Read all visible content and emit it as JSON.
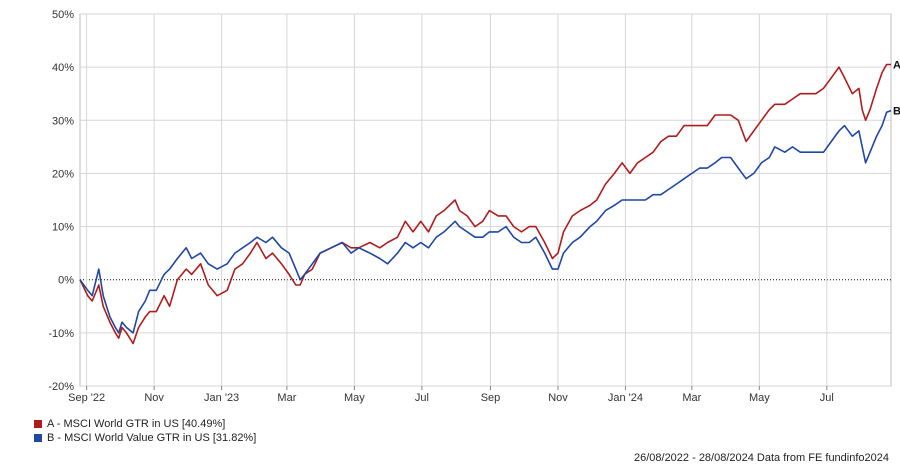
{
  "chart_data": {
    "type": "line",
    "xlim": [
      "2022-08-26",
      "2024-08-28"
    ],
    "ylim": [
      -20,
      50
    ],
    "ytick_values": [
      -20,
      -10,
      0,
      10,
      20,
      30,
      40,
      50
    ],
    "ytick_labels": [
      "-20%",
      "-10%",
      "0%",
      "10%",
      "20%",
      "30%",
      "40%",
      "50%"
    ],
    "xtick_dates": [
      "2022-09-01",
      "2022-11-01",
      "2023-01-01",
      "2023-03-01",
      "2023-05-01",
      "2023-07-01",
      "2023-09-01",
      "2023-11-01",
      "2024-01-01",
      "2024-03-01",
      "2024-05-01",
      "2024-07-01"
    ],
    "xtick_labels": [
      "Sep '22",
      "Nov",
      "Jan '23",
      "Mar",
      "May",
      "Jul",
      "Sep",
      "Nov",
      "Jan '24",
      "Mar",
      "May",
      "Jul"
    ],
    "grid": true,
    "zero_line": "dotted",
    "legend_position": "bottom-left",
    "series": [
      {
        "id": "A",
        "name": "A - MSCI World GTR in US [40.49%]",
        "end_label": "A",
        "color": "#b01c1c",
        "points": [
          [
            "2022-08-26",
            0
          ],
          [
            "2022-09-02",
            -3
          ],
          [
            "2022-09-06",
            -4
          ],
          [
            "2022-09-12",
            -1
          ],
          [
            "2022-09-16",
            -5
          ],
          [
            "2022-09-22",
            -8
          ],
          [
            "2022-09-27",
            -10
          ],
          [
            "2022-09-30",
            -11
          ],
          [
            "2022-10-03",
            -9
          ],
          [
            "2022-10-07",
            -10
          ],
          [
            "2022-10-13",
            -12
          ],
          [
            "2022-10-18",
            -9
          ],
          [
            "2022-10-24",
            -7
          ],
          [
            "2022-10-28",
            -6
          ],
          [
            "2022-11-03",
            -6
          ],
          [
            "2022-11-10",
            -3
          ],
          [
            "2022-11-15",
            -5
          ],
          [
            "2022-11-22",
            0
          ],
          [
            "2022-11-30",
            2
          ],
          [
            "2022-12-05",
            1
          ],
          [
            "2022-12-13",
            3
          ],
          [
            "2022-12-20",
            -1
          ],
          [
            "2022-12-28",
            -3
          ],
          [
            "2023-01-06",
            -2
          ],
          [
            "2023-01-13",
            2
          ],
          [
            "2023-01-20",
            3
          ],
          [
            "2023-01-27",
            5
          ],
          [
            "2023-02-02",
            7
          ],
          [
            "2023-02-10",
            4
          ],
          [
            "2023-02-16",
            5
          ],
          [
            "2023-02-24",
            3
          ],
          [
            "2023-03-03",
            1
          ],
          [
            "2023-03-09",
            -1
          ],
          [
            "2023-03-13",
            -1
          ],
          [
            "2023-03-17",
            1
          ],
          [
            "2023-03-24",
            2
          ],
          [
            "2023-03-31",
            5
          ],
          [
            "2023-04-10",
            6
          ],
          [
            "2023-04-20",
            7
          ],
          [
            "2023-04-28",
            6
          ],
          [
            "2023-05-05",
            6
          ],
          [
            "2023-05-15",
            7
          ],
          [
            "2023-05-24",
            6
          ],
          [
            "2023-05-31",
            7
          ],
          [
            "2023-06-09",
            8
          ],
          [
            "2023-06-16",
            11
          ],
          [
            "2023-06-23",
            9
          ],
          [
            "2023-06-30",
            11
          ],
          [
            "2023-07-07",
            9
          ],
          [
            "2023-07-14",
            12
          ],
          [
            "2023-07-21",
            13
          ],
          [
            "2023-07-31",
            15
          ],
          [
            "2023-08-04",
            13
          ],
          [
            "2023-08-11",
            12
          ],
          [
            "2023-08-18",
            10
          ],
          [
            "2023-08-25",
            11
          ],
          [
            "2023-08-31",
            13
          ],
          [
            "2023-09-08",
            12
          ],
          [
            "2023-09-15",
            12
          ],
          [
            "2023-09-22",
            10
          ],
          [
            "2023-09-29",
            9
          ],
          [
            "2023-10-06",
            10
          ],
          [
            "2023-10-12",
            10
          ],
          [
            "2023-10-20",
            7
          ],
          [
            "2023-10-27",
            4
          ],
          [
            "2023-11-01",
            5
          ],
          [
            "2023-11-06",
            9
          ],
          [
            "2023-11-14",
            12
          ],
          [
            "2023-11-21",
            13
          ],
          [
            "2023-11-30",
            14
          ],
          [
            "2023-12-06",
            15
          ],
          [
            "2023-12-14",
            18
          ],
          [
            "2023-12-22",
            20
          ],
          [
            "2023-12-29",
            22
          ],
          [
            "2024-01-05",
            20
          ],
          [
            "2024-01-12",
            22
          ],
          [
            "2024-01-19",
            23
          ],
          [
            "2024-01-26",
            24
          ],
          [
            "2024-02-02",
            26
          ],
          [
            "2024-02-09",
            27
          ],
          [
            "2024-02-16",
            27
          ],
          [
            "2024-02-23",
            29
          ],
          [
            "2024-03-01",
            29
          ],
          [
            "2024-03-08",
            29
          ],
          [
            "2024-03-15",
            29
          ],
          [
            "2024-03-22",
            31
          ],
          [
            "2024-03-28",
            31
          ],
          [
            "2024-04-05",
            31
          ],
          [
            "2024-04-12",
            30
          ],
          [
            "2024-04-19",
            26
          ],
          [
            "2024-04-26",
            28
          ],
          [
            "2024-05-03",
            30
          ],
          [
            "2024-05-10",
            32
          ],
          [
            "2024-05-15",
            33
          ],
          [
            "2024-05-24",
            33
          ],
          [
            "2024-05-31",
            34
          ],
          [
            "2024-06-07",
            35
          ],
          [
            "2024-06-14",
            35
          ],
          [
            "2024-06-21",
            35
          ],
          [
            "2024-06-28",
            36
          ],
          [
            "2024-07-05",
            38
          ],
          [
            "2024-07-12",
            40
          ],
          [
            "2024-07-17",
            38
          ],
          [
            "2024-07-24",
            35
          ],
          [
            "2024-07-30",
            36
          ],
          [
            "2024-08-02",
            32
          ],
          [
            "2024-08-05",
            30
          ],
          [
            "2024-08-09",
            32
          ],
          [
            "2024-08-15",
            36
          ],
          [
            "2024-08-20",
            39
          ],
          [
            "2024-08-24",
            40.5
          ],
          [
            "2024-08-28",
            40.49
          ]
        ]
      },
      {
        "id": "B",
        "name": "B - MSCI World Value GTR in US [31.82%]",
        "end_label": "B",
        "color": "#1f47a5",
        "points": [
          [
            "2022-08-26",
            0
          ],
          [
            "2022-09-02",
            -2
          ],
          [
            "2022-09-06",
            -3
          ],
          [
            "2022-09-12",
            2
          ],
          [
            "2022-09-16",
            -3
          ],
          [
            "2022-09-22",
            -7
          ],
          [
            "2022-09-27",
            -9
          ],
          [
            "2022-09-30",
            -10
          ],
          [
            "2022-10-03",
            -8
          ],
          [
            "2022-10-07",
            -9
          ],
          [
            "2022-10-13",
            -10
          ],
          [
            "2022-10-18",
            -6
          ],
          [
            "2022-10-24",
            -4
          ],
          [
            "2022-10-28",
            -2
          ],
          [
            "2022-11-03",
            -2
          ],
          [
            "2022-11-10",
            1
          ],
          [
            "2022-11-15",
            2
          ],
          [
            "2022-11-22",
            4
          ],
          [
            "2022-11-30",
            6
          ],
          [
            "2022-12-05",
            4
          ],
          [
            "2022-12-13",
            5
          ],
          [
            "2022-12-20",
            3
          ],
          [
            "2022-12-28",
            2
          ],
          [
            "2023-01-06",
            3
          ],
          [
            "2023-01-13",
            5
          ],
          [
            "2023-01-20",
            6
          ],
          [
            "2023-01-27",
            7
          ],
          [
            "2023-02-02",
            8
          ],
          [
            "2023-02-10",
            7
          ],
          [
            "2023-02-16",
            8
          ],
          [
            "2023-02-24",
            6
          ],
          [
            "2023-03-03",
            5
          ],
          [
            "2023-03-09",
            2
          ],
          [
            "2023-03-13",
            0
          ],
          [
            "2023-03-17",
            1
          ],
          [
            "2023-03-24",
            3
          ],
          [
            "2023-03-31",
            5
          ],
          [
            "2023-04-10",
            6
          ],
          [
            "2023-04-20",
            7
          ],
          [
            "2023-04-28",
            5
          ],
          [
            "2023-05-05",
            6
          ],
          [
            "2023-05-15",
            5
          ],
          [
            "2023-05-24",
            4
          ],
          [
            "2023-05-31",
            3
          ],
          [
            "2023-06-09",
            5
          ],
          [
            "2023-06-16",
            7
          ],
          [
            "2023-06-23",
            6
          ],
          [
            "2023-06-30",
            7
          ],
          [
            "2023-07-07",
            6
          ],
          [
            "2023-07-14",
            8
          ],
          [
            "2023-07-21",
            9
          ],
          [
            "2023-07-31",
            11
          ],
          [
            "2023-08-04",
            10
          ],
          [
            "2023-08-11",
            9
          ],
          [
            "2023-08-18",
            8
          ],
          [
            "2023-08-25",
            8
          ],
          [
            "2023-08-31",
            9
          ],
          [
            "2023-09-08",
            9
          ],
          [
            "2023-09-15",
            10
          ],
          [
            "2023-09-22",
            8
          ],
          [
            "2023-09-29",
            7
          ],
          [
            "2023-10-06",
            7
          ],
          [
            "2023-10-12",
            8
          ],
          [
            "2023-10-20",
            5
          ],
          [
            "2023-10-27",
            2
          ],
          [
            "2023-11-01",
            2
          ],
          [
            "2023-11-06",
            5
          ],
          [
            "2023-11-14",
            7
          ],
          [
            "2023-11-21",
            8
          ],
          [
            "2023-11-30",
            10
          ],
          [
            "2023-12-06",
            11
          ],
          [
            "2023-12-14",
            13
          ],
          [
            "2023-12-22",
            14
          ],
          [
            "2023-12-29",
            15
          ],
          [
            "2024-01-05",
            15
          ],
          [
            "2024-01-12",
            15
          ],
          [
            "2024-01-19",
            15
          ],
          [
            "2024-01-26",
            16
          ],
          [
            "2024-02-02",
            16
          ],
          [
            "2024-02-09",
            17
          ],
          [
            "2024-02-16",
            18
          ],
          [
            "2024-02-23",
            19
          ],
          [
            "2024-03-01",
            20
          ],
          [
            "2024-03-08",
            21
          ],
          [
            "2024-03-15",
            21
          ],
          [
            "2024-03-22",
            22
          ],
          [
            "2024-03-28",
            23
          ],
          [
            "2024-04-05",
            23
          ],
          [
            "2024-04-12",
            21
          ],
          [
            "2024-04-19",
            19
          ],
          [
            "2024-04-26",
            20
          ],
          [
            "2024-05-03",
            22
          ],
          [
            "2024-05-10",
            23
          ],
          [
            "2024-05-15",
            25
          ],
          [
            "2024-05-24",
            24
          ],
          [
            "2024-05-31",
            25
          ],
          [
            "2024-06-07",
            24
          ],
          [
            "2024-06-14",
            24
          ],
          [
            "2024-06-21",
            24
          ],
          [
            "2024-06-28",
            24
          ],
          [
            "2024-07-05",
            26
          ],
          [
            "2024-07-12",
            28
          ],
          [
            "2024-07-17",
            29
          ],
          [
            "2024-07-24",
            27
          ],
          [
            "2024-07-30",
            28
          ],
          [
            "2024-08-02",
            25
          ],
          [
            "2024-08-05",
            22
          ],
          [
            "2024-08-09",
            24
          ],
          [
            "2024-08-15",
            27
          ],
          [
            "2024-08-20",
            29
          ],
          [
            "2024-08-24",
            31.5
          ],
          [
            "2024-08-28",
            31.82
          ]
        ]
      }
    ]
  },
  "footer": {
    "text": "26/08/2022 - 28/08/2024 Data from FE fundinfo2024"
  }
}
